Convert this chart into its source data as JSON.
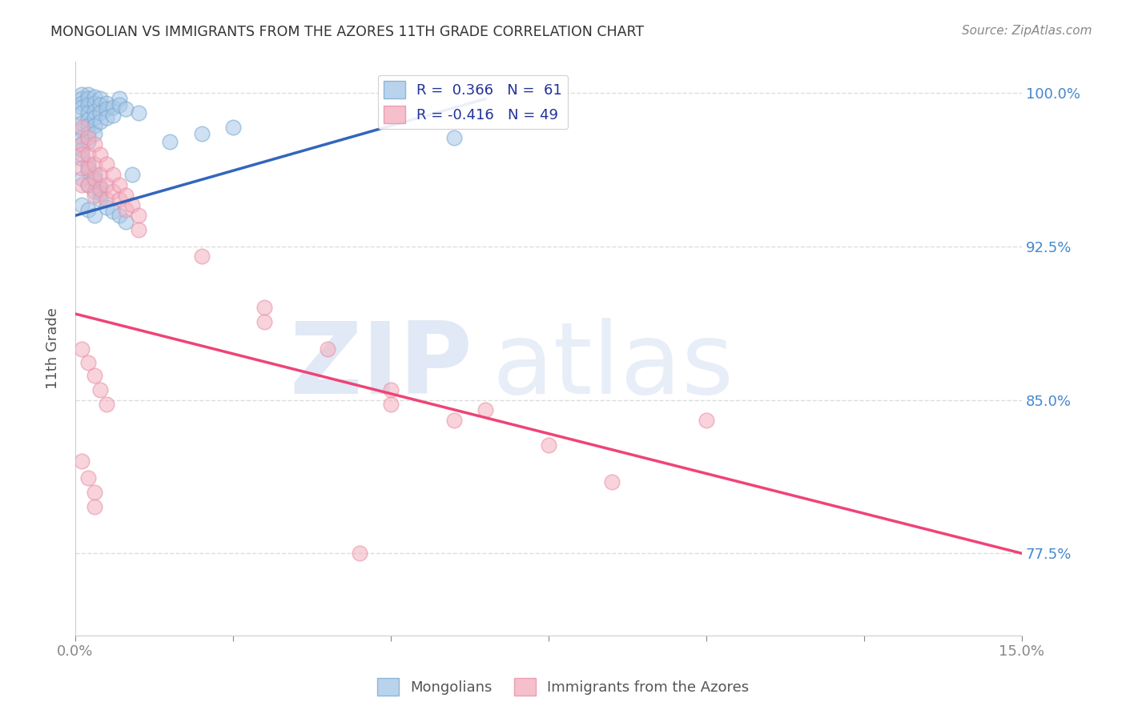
{
  "title": "MONGOLIAN VS IMMIGRANTS FROM THE AZORES 11TH GRADE CORRELATION CHART",
  "source": "Source: ZipAtlas.com",
  "ylabel": "11th Grade",
  "legend_mongolians": "Mongolians",
  "legend_azores": "Immigrants from the Azores",
  "blue_color": "#a8c8e8",
  "blue_edge_color": "#7aaad0",
  "pink_color": "#f4b0c0",
  "pink_edge_color": "#e890a8",
  "blue_line_color": "#3366bb",
  "pink_line_color": "#ee4477",
  "background_color": "#ffffff",
  "grid_color": "#dddddd",
  "watermark_zip_color": "#c8d8ee",
  "watermark_atlas_color": "#b0c8e8",
  "title_color": "#333333",
  "source_color": "#888888",
  "ylabel_color": "#555555",
  "right_tick_color": "#4488cc",
  "xlim": [
    0.0,
    0.15
  ],
  "ylim": [
    0.735,
    1.015
  ],
  "yticks": [
    0.775,
    0.85,
    0.925,
    1.0
  ],
  "ytick_labels": [
    "77.5%",
    "85.0%",
    "92.5%",
    "100.0%"
  ],
  "xticks": [
    0.0,
    0.025,
    0.05,
    0.075,
    0.1,
    0.125,
    0.15
  ],
  "xtick_labels_show": [
    "0.0%",
    "",
    "",
    "",
    "",
    "",
    "15.0%"
  ],
  "blue_line_x0": 0.0,
  "blue_line_x1": 0.065,
  "blue_line_y0": 0.94,
  "blue_line_y1": 0.997,
  "pink_line_x0": 0.0,
  "pink_line_x1": 0.15,
  "pink_line_y0": 0.892,
  "pink_line_y1": 0.775,
  "blue_points_x": [
    0.001,
    0.001,
    0.001,
    0.001,
    0.001,
    0.001,
    0.001,
    0.001,
    0.001,
    0.002,
    0.002,
    0.002,
    0.002,
    0.002,
    0.002,
    0.002,
    0.002,
    0.003,
    0.003,
    0.003,
    0.003,
    0.003,
    0.003,
    0.004,
    0.004,
    0.004,
    0.004,
    0.005,
    0.005,
    0.005,
    0.006,
    0.006,
    0.007,
    0.007,
    0.008,
    0.01,
    0.015,
    0.02,
    0.025,
    0.001,
    0.001,
    0.002,
    0.002,
    0.003,
    0.003,
    0.004,
    0.004,
    0.001,
    0.002,
    0.003,
    0.004,
    0.005,
    0.006,
    0.007,
    0.008,
    0.001,
    0.002,
    0.003,
    0.009,
    0.06
  ],
  "blue_points_y": [
    0.999,
    0.997,
    0.995,
    0.993,
    0.99,
    0.985,
    0.982,
    0.978,
    0.975,
    0.999,
    0.997,
    0.994,
    0.99,
    0.987,
    0.984,
    0.98,
    0.976,
    0.998,
    0.995,
    0.991,
    0.988,
    0.984,
    0.98,
    0.997,
    0.994,
    0.99,
    0.986,
    0.995,
    0.992,
    0.988,
    0.993,
    0.989,
    0.997,
    0.994,
    0.992,
    0.99,
    0.976,
    0.98,
    0.983,
    0.972,
    0.968,
    0.965,
    0.962,
    0.96,
    0.957,
    0.954,
    0.951,
    0.958,
    0.955,
    0.952,
    0.948,
    0.944,
    0.942,
    0.94,
    0.937,
    0.945,
    0.943,
    0.94,
    0.96,
    0.978
  ],
  "pink_points_x": [
    0.001,
    0.001,
    0.001,
    0.001,
    0.001,
    0.002,
    0.002,
    0.002,
    0.002,
    0.003,
    0.003,
    0.003,
    0.003,
    0.004,
    0.004,
    0.004,
    0.005,
    0.005,
    0.005,
    0.006,
    0.006,
    0.007,
    0.007,
    0.008,
    0.008,
    0.009,
    0.01,
    0.01,
    0.02,
    0.03,
    0.03,
    0.04,
    0.05,
    0.05,
    0.06,
    0.065,
    0.075,
    0.085,
    0.1,
    0.001,
    0.002,
    0.003,
    0.004,
    0.005,
    0.001,
    0.002,
    0.003,
    0.003,
    0.045
  ],
  "pink_points_y": [
    0.983,
    0.975,
    0.97,
    0.963,
    0.955,
    0.978,
    0.97,
    0.963,
    0.955,
    0.975,
    0.965,
    0.958,
    0.95,
    0.97,
    0.96,
    0.953,
    0.965,
    0.955,
    0.948,
    0.96,
    0.952,
    0.955,
    0.948,
    0.95,
    0.943,
    0.945,
    0.94,
    0.933,
    0.92,
    0.895,
    0.888,
    0.875,
    0.855,
    0.848,
    0.84,
    0.845,
    0.828,
    0.81,
    0.84,
    0.875,
    0.868,
    0.862,
    0.855,
    0.848,
    0.82,
    0.812,
    0.805,
    0.798,
    0.775
  ]
}
